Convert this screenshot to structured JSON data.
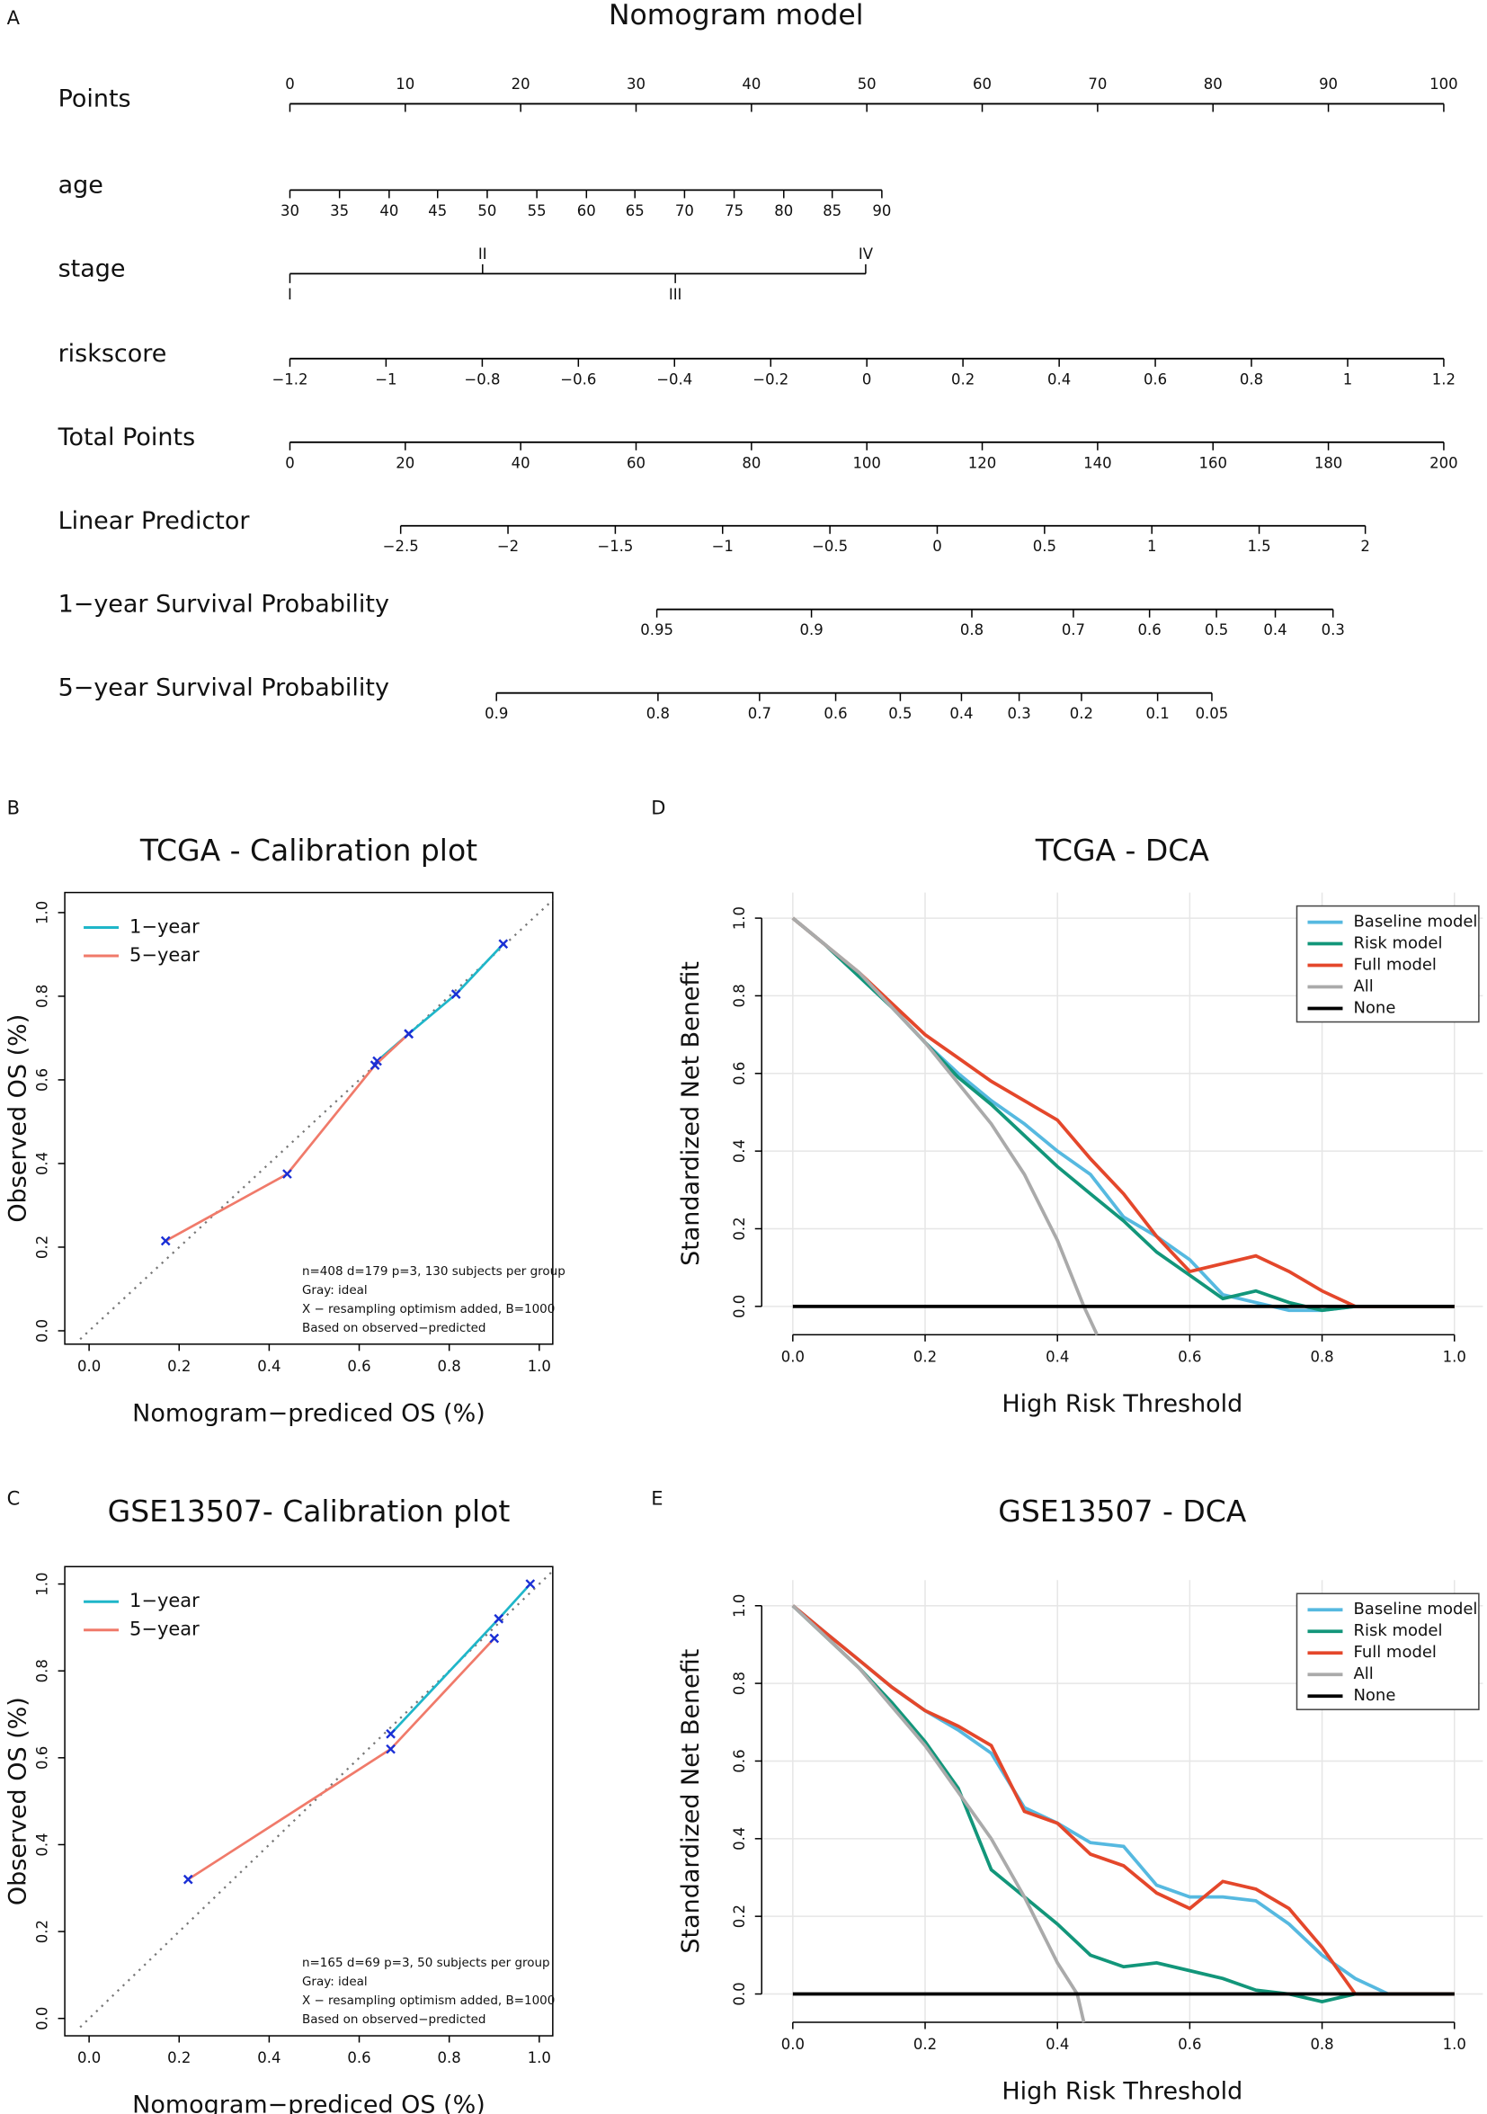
{
  "chart_data": [
    {
      "type": "nomogram",
      "panel": "A",
      "title": "Nomogram model",
      "points_lim": [
        0,
        100
      ],
      "rows": [
        {
          "name": "Points",
          "ticks": [
            0,
            10,
            20,
            30,
            40,
            50,
            60,
            70,
            80,
            90,
            100
          ],
          "points": [
            0,
            10,
            20,
            30,
            40,
            50,
            60,
            70,
            80,
            90,
            100
          ]
        },
        {
          "name": "age",
          "ticks": [
            30,
            35,
            40,
            45,
            50,
            55,
            60,
            65,
            70,
            75,
            80,
            85,
            90
          ],
          "points": [
            0,
            4.3,
            8.6,
            12.8,
            17.1,
            21.4,
            25.7,
            29.9,
            34.2,
            38.5,
            42.8,
            47.0,
            51.3
          ]
        },
        {
          "name": "stage",
          "ticks": [
            "I",
            "II",
            "III",
            "IV"
          ],
          "points": [
            0,
            16.7,
            33.4,
            49.9
          ]
        },
        {
          "name": "riskscore",
          "ticks": [
            {
              "value": -1.2,
              "label": "−1.2"
            },
            {
              "value": -1,
              "label": "−1"
            },
            {
              "value": -0.8,
              "label": "−0.8"
            },
            {
              "value": -0.6,
              "label": "−0.6"
            },
            {
              "value": -0.4,
              "label": "−0.4"
            },
            {
              "value": -0.2,
              "label": "−0.2"
            },
            0,
            0.2,
            0.4,
            0.6,
            0.8,
            1,
            1.2
          ],
          "points": [
            0,
            8.33,
            16.67,
            25,
            33.33,
            41.67,
            50,
            58.33,
            66.67,
            75,
            83.33,
            91.67,
            100
          ]
        },
        {
          "name": "Total Points",
          "ticks": [
            0,
            20,
            40,
            60,
            80,
            100,
            120,
            140,
            160,
            180,
            200
          ],
          "points": [
            0,
            10,
            20,
            30,
            40,
            50,
            60,
            70,
            80,
            90,
            100
          ]
        },
        {
          "name": "Linear Predictor",
          "ticks": [
            {
              "value": -2.5,
              "label": "−2.5"
            },
            {
              "value": -2,
              "label": "−2"
            },
            {
              "value": -1.5,
              "label": "−1.5"
            },
            {
              "value": -1,
              "label": "−1"
            },
            {
              "value": -0.5,
              "label": "−0.5"
            },
            0,
            0.5,
            1,
            1.5,
            2
          ],
          "points": [
            9.6,
            18.9,
            28.2,
            37.5,
            46.8,
            56.1,
            65.4,
            74.7,
            84.0,
            93.2
          ]
        },
        {
          "name": "1−year Survival Probability",
          "ticks": [
            0.95,
            0.9,
            0.8,
            0.7,
            0.6,
            0.5,
            0.4,
            0.3
          ],
          "points": [
            31.8,
            45.2,
            59.1,
            67.9,
            74.5,
            80.3,
            85.4,
            90.4
          ]
        },
        {
          "name": "5−year Survival Probability",
          "ticks": [
            0.9,
            0.8,
            0.7,
            0.6,
            0.5,
            0.4,
            0.3,
            0.2,
            0.1,
            0.05
          ],
          "points": [
            17.9,
            31.9,
            40.7,
            47.3,
            52.9,
            58.2,
            63.2,
            68.6,
            75.2,
            79.9
          ]
        }
      ]
    },
    {
      "type": "line",
      "panel": "B",
      "title": "TCGA - Calibration plot",
      "xlabel": "Nomogram−prediced OS (%)",
      "ylabel": "Observed OS (%)",
      "xlim": [
        -0.054,
        1.03
      ],
      "ylim": [
        -0.032,
        1.048
      ],
      "xticks": [
        {
          "value": 0,
          "label": "0.0"
        },
        0.2,
        0.4,
        0.6,
        0.8,
        {
          "value": 1,
          "label": "1.0"
        }
      ],
      "yticks": [
        {
          "value": 0,
          "label": "0.0"
        },
        0.2,
        0.4,
        0.6,
        0.8,
        {
          "value": 1,
          "label": "1.0"
        }
      ],
      "grid": false,
      "frame": true,
      "legend": "top left",
      "marker_color": "#1a2fd6",
      "ideal": {
        "x": [
          -0.02,
          1.03
        ],
        "values": [
          -0.02,
          1.03
        ],
        "color": "#777777"
      },
      "notes": [
        "n=408 d=179 p=3, 130 subjects per group",
        "Gray: ideal",
        "X − resampling optimism added, B=1000",
        "Based on observed−predicted"
      ],
      "series": [
        {
          "name": "1−year",
          "color": "#1fb6c9",
          "x": [
            0.64,
            0.71,
            0.815,
            0.92
          ],
          "values": [
            0.645,
            0.71,
            0.805,
            0.925
          ]
        },
        {
          "name": "5−year",
          "color": "#f07a6a",
          "x": [
            0.17,
            0.44,
            0.635,
            0.71
          ],
          "values": [
            0.215,
            0.375,
            0.635,
            0.71
          ]
        }
      ]
    },
    {
      "type": "line",
      "panel": "D",
      "title": "TCGA - DCA",
      "xlabel": "High Risk Threshold",
      "ylabel": "Standardized Net Benefit",
      "xlim": [
        -0.047,
        1.043
      ],
      "ylim": [
        -0.073,
        1.066
      ],
      "xticks": [
        {
          "value": 0,
          "label": "0.0"
        },
        0.2,
        0.4,
        0.6,
        0.8,
        {
          "value": 1,
          "label": "1.0"
        }
      ],
      "yticks": [
        {
          "value": 0,
          "label": "0.0"
        },
        0.2,
        0.4,
        0.6,
        0.8,
        {
          "value": 1,
          "label": "1.0"
        }
      ],
      "grid": true,
      "frame": false,
      "legend": "top right",
      "series": [
        {
          "name": "Baseline model",
          "color": "#56b9e0",
          "x": [
            0,
            0.05,
            0.1,
            0.15,
            0.2,
            0.25,
            0.3,
            0.35,
            0.4,
            0.45,
            0.5,
            0.55,
            0.6,
            0.65,
            0.7,
            0.75,
            0.8,
            0.85,
            0.9,
            0.95,
            1
          ],
          "values": [
            1,
            0.93,
            0.85,
            0.77,
            0.68,
            0.6,
            0.53,
            0.47,
            0.4,
            0.34,
            0.23,
            0.18,
            0.12,
            0.03,
            0.01,
            -0.01,
            -0.01,
            0,
            0,
            0,
            0
          ]
        },
        {
          "name": "Risk model",
          "color": "#12967a",
          "x": [
            0,
            0.05,
            0.1,
            0.15,
            0.2,
            0.25,
            0.3,
            0.35,
            0.4,
            0.45,
            0.5,
            0.55,
            0.6,
            0.65,
            0.7,
            0.75,
            0.8,
            0.85,
            0.9,
            0.95,
            1
          ],
          "values": [
            1,
            0.93,
            0.85,
            0.77,
            0.68,
            0.59,
            0.52,
            0.44,
            0.36,
            0.29,
            0.22,
            0.14,
            0.08,
            0.02,
            0.04,
            0.01,
            -0.01,
            0,
            0,
            0,
            0
          ]
        },
        {
          "name": "Full model",
          "color": "#e4472b",
          "x": [
            0,
            0.05,
            0.1,
            0.15,
            0.2,
            0.25,
            0.3,
            0.35,
            0.4,
            0.45,
            0.5,
            0.55,
            0.6,
            0.65,
            0.7,
            0.75,
            0.8,
            0.85,
            0.9,
            0.95,
            1
          ],
          "values": [
            1,
            0.93,
            0.86,
            0.78,
            0.7,
            0.64,
            0.58,
            0.53,
            0.48,
            0.38,
            0.29,
            0.18,
            0.09,
            0.11,
            0.13,
            0.09,
            0.04,
            0,
            0,
            0,
            0
          ]
        },
        {
          "name": "All",
          "color": "#aaaaaa",
          "x": [
            0,
            0.1,
            0.2,
            0.3,
            0.35,
            0.4,
            0.44,
            0.46
          ],
          "values": [
            1,
            0.86,
            0.68,
            0.47,
            0.34,
            0.17,
            0,
            -0.073
          ]
        },
        {
          "name": "None",
          "color": "#000000",
          "x": [
            0,
            1
          ],
          "values": [
            0,
            0
          ]
        }
      ]
    },
    {
      "type": "line",
      "panel": "C",
      "title": "GSE13507- Calibration plot",
      "xlabel": "Nomogram−prediced OS (%)",
      "ylabel": "Observed OS (%)",
      "xlim": [
        -0.054,
        1.03
      ],
      "ylim": [
        -0.04,
        1.04
      ],
      "xticks": [
        {
          "value": 0,
          "label": "0.0"
        },
        0.2,
        0.4,
        0.6,
        0.8,
        {
          "value": 1,
          "label": "1.0"
        }
      ],
      "yticks": [
        {
          "value": 0,
          "label": "0.0"
        },
        0.2,
        0.4,
        0.6,
        0.8,
        {
          "value": 1,
          "label": "1.0"
        }
      ],
      "grid": false,
      "frame": true,
      "legend": "top left",
      "marker_color": "#1a2fd6",
      "ideal": {
        "x": [
          -0.02,
          1.03
        ],
        "values": [
          -0.02,
          1.03
        ],
        "color": "#777777"
      },
      "notes": [
        "n=165 d=69 p=3, 50 subjects per group",
        "Gray: ideal",
        "X − resampling optimism added, B=1000",
        "Based on observed−predicted"
      ],
      "series": [
        {
          "name": "1−year",
          "color": "#1fb6c9",
          "x": [
            0.67,
            0.91,
            0.98
          ],
          "values": [
            0.655,
            0.92,
            1.0
          ]
        },
        {
          "name": "5−year",
          "color": "#f07a6a",
          "x": [
            0.22,
            0.67,
            0.9
          ],
          "values": [
            0.32,
            0.62,
            0.875
          ]
        }
      ]
    },
    {
      "type": "line",
      "panel": "E",
      "title": "GSE13507 - DCA",
      "xlabel": "High Risk Threshold",
      "ylabel": "Standardized Net Benefit",
      "xlim": [
        -0.047,
        1.043
      ],
      "ylim": [
        -0.073,
        1.066
      ],
      "xticks": [
        {
          "value": 0,
          "label": "0.0"
        },
        0.2,
        0.4,
        0.6,
        0.8,
        {
          "value": 1,
          "label": "1.0"
        }
      ],
      "yticks": [
        {
          "value": 0,
          "label": "0.0"
        },
        0.2,
        0.4,
        0.6,
        0.8,
        {
          "value": 1,
          "label": "1.0"
        }
      ],
      "grid": true,
      "frame": false,
      "legend": "top right",
      "series": [
        {
          "name": "Baseline model",
          "color": "#56b9e0",
          "x": [
            0,
            0.05,
            0.1,
            0.15,
            0.2,
            0.25,
            0.3,
            0.35,
            0.4,
            0.45,
            0.5,
            0.55,
            0.6,
            0.65,
            0.7,
            0.75,
            0.8,
            0.85,
            0.9,
            0.95,
            1
          ],
          "values": [
            1,
            0.93,
            0.86,
            0.79,
            0.73,
            0.68,
            0.62,
            0.48,
            0.44,
            0.39,
            0.38,
            0.28,
            0.25,
            0.25,
            0.24,
            0.18,
            0.1,
            0.04,
            0,
            0,
            0
          ]
        },
        {
          "name": "Risk model",
          "color": "#12967a",
          "x": [
            0,
            0.05,
            0.1,
            0.15,
            0.2,
            0.25,
            0.3,
            0.35,
            0.4,
            0.45,
            0.5,
            0.55,
            0.6,
            0.65,
            0.7,
            0.75,
            0.8,
            0.85,
            0.9,
            0.95,
            1
          ],
          "values": [
            1,
            0.92,
            0.84,
            0.75,
            0.65,
            0.53,
            0.32,
            0.25,
            0.18,
            0.1,
            0.07,
            0.08,
            0.06,
            0.04,
            0.01,
            0,
            -0.02,
            0,
            0,
            0,
            0
          ]
        },
        {
          "name": "Full model",
          "color": "#e4472b",
          "x": [
            0,
            0.05,
            0.1,
            0.15,
            0.2,
            0.25,
            0.3,
            0.35,
            0.4,
            0.45,
            0.5,
            0.55,
            0.6,
            0.65,
            0.7,
            0.75,
            0.8,
            0.85,
            0.9,
            0.95,
            1
          ],
          "values": [
            1,
            0.93,
            0.86,
            0.79,
            0.73,
            0.69,
            0.64,
            0.47,
            0.44,
            0.36,
            0.33,
            0.26,
            0.22,
            0.29,
            0.27,
            0.22,
            0.12,
            0,
            0,
            0,
            0
          ]
        },
        {
          "name": "All",
          "color": "#aaaaaa",
          "x": [
            0,
            0.1,
            0.2,
            0.3,
            0.35,
            0.4,
            0.43,
            0.44
          ],
          "values": [
            1,
            0.84,
            0.64,
            0.4,
            0.25,
            0.08,
            0,
            -0.073
          ]
        },
        {
          "name": "None",
          "color": "#000000",
          "x": [
            0,
            1
          ],
          "values": [
            0,
            0
          ]
        }
      ]
    }
  ]
}
